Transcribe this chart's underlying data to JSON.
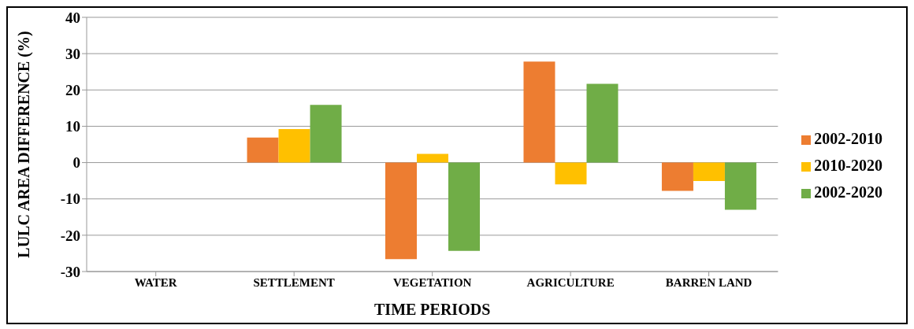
{
  "chart_data": {
    "type": "bar",
    "xlabel": "TIME  PERIODS",
    "ylabel": "LULC AREA DIFFERENCE (%)",
    "categories": [
      "WATER",
      "SETTLEMENT",
      "VEGETATION",
      "AGRICULTURE",
      "BARREN LAND"
    ],
    "series": [
      {
        "name": "2002-2010",
        "color": "#ed7d31",
        "values": [
          0,
          6.9,
          -26.6,
          27.8,
          -7.8
        ]
      },
      {
        "name": "2010-2020",
        "color": "#ffc000",
        "values": [
          0,
          9.2,
          2.4,
          -6.0,
          -5.1
        ]
      },
      {
        "name": "2002-2020",
        "color": "#70ad47",
        "values": [
          0,
          15.9,
          -24.3,
          21.7,
          -13.0
        ]
      }
    ],
    "ylim": [
      -30,
      40
    ],
    "yticks": [
      -30,
      -20,
      -10,
      0,
      10,
      20,
      30,
      40
    ],
    "grid": "y",
    "legend": "right"
  }
}
